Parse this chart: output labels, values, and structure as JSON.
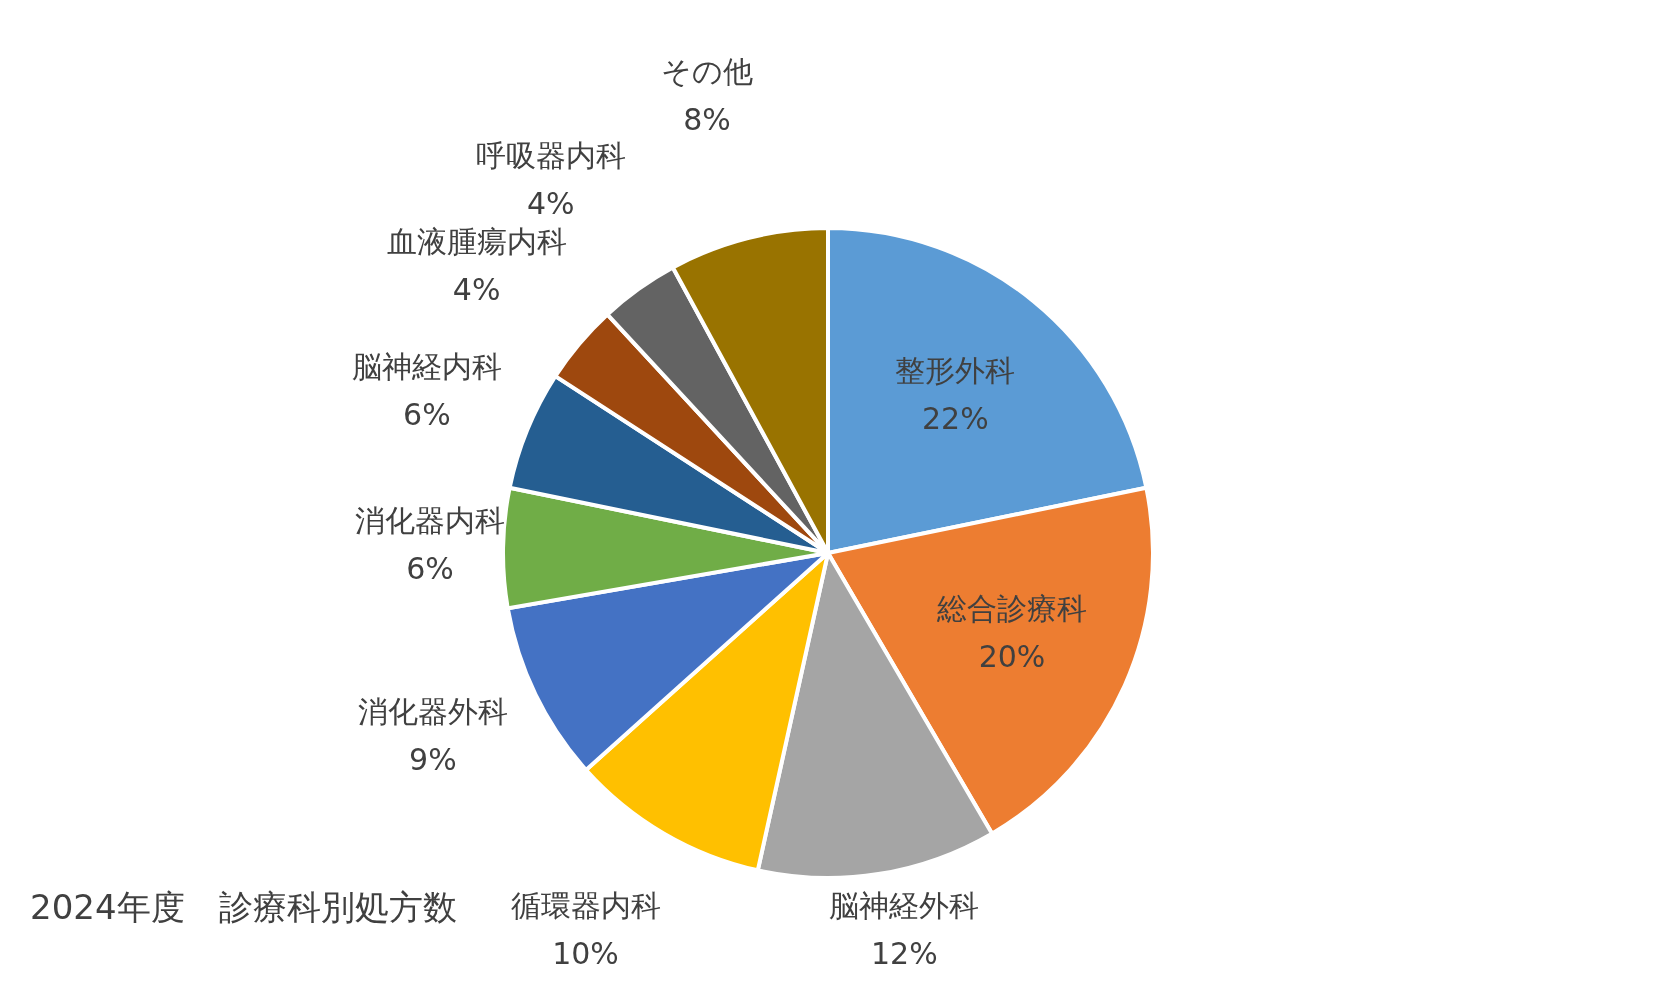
{
  "chart_data": {
    "type": "pie",
    "title": "2024年度　診療科別処方数",
    "categories": [
      "整形外科",
      "総合診療科",
      "脳神経外科",
      "循環器内科",
      "消化器外科",
      "消化器内科",
      "脳神経内科",
      "血液腫瘍内科",
      "呼吸器内科",
      "その他"
    ],
    "values": [
      22,
      20,
      12,
      10,
      9,
      6,
      6,
      4,
      4,
      8
    ],
    "colors": [
      "#5b9bd5",
      "#ed7d31",
      "#a5a5a5",
      "#ffc000",
      "#4472c4",
      "#70ad47",
      "#255e91",
      "#9e480e",
      "#636363",
      "#997300"
    ],
    "value_labels": [
      "22%",
      "20%",
      "12%",
      "10%",
      "9%",
      "6%",
      "6%",
      "4%",
      "4%",
      "8%"
    ],
    "legend": false
  }
}
